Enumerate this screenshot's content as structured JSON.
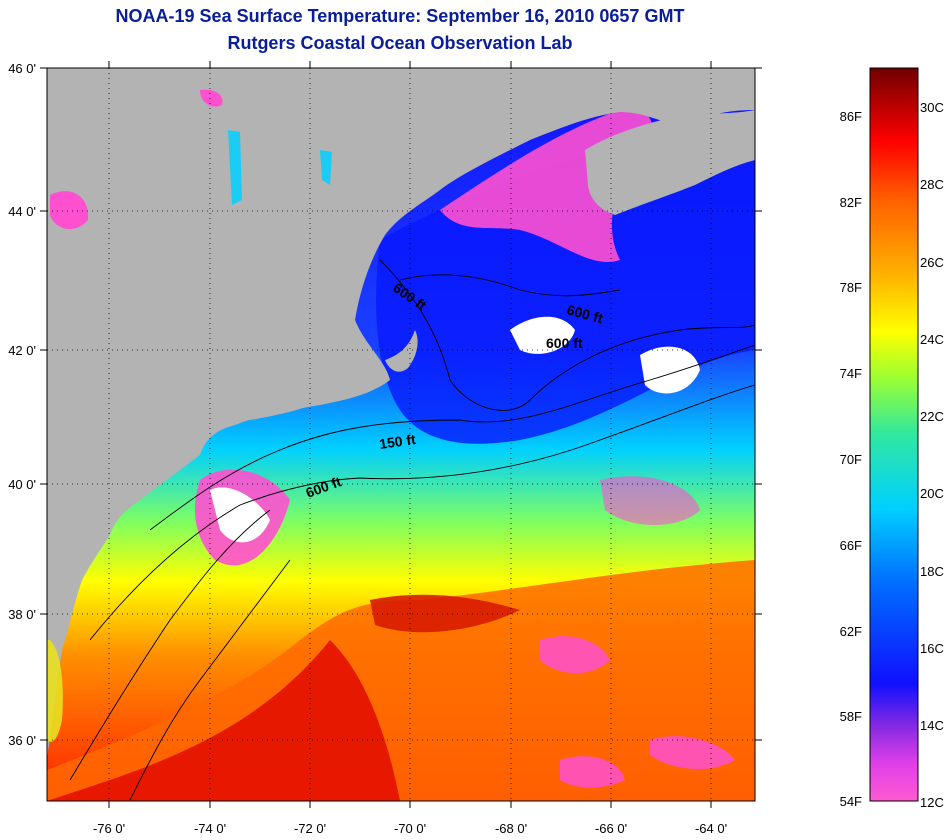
{
  "title": "NOAA-19 Sea Surface Temperature:  September 16, 2010 0657 GMT",
  "subtitle": "Rutgers Coastal Ocean Observation Lab",
  "map": {
    "lon_range": [
      -77,
      -63
    ],
    "lat_range": [
      35,
      46
    ],
    "lon_ticks": [
      "-76 0'",
      "-74 0'",
      "-72 0'",
      "-70 0'",
      "-68 0'",
      "-66 0'",
      "-64 0'"
    ],
    "lat_ticks": [
      "46 0'",
      "44 0'",
      "42 0'",
      "40 0'",
      "38 0'",
      "36 0'"
    ],
    "contour_labels": [
      "600 ft",
      "600 ft",
      "600 ft",
      "150 ft",
      "600 ft"
    ],
    "land_color": "#b3b3b3",
    "cloud_color": "#ffffff"
  },
  "colorbar": {
    "fahrenheit_labels": [
      "86F",
      "82F",
      "78F",
      "74F",
      "70F",
      "66F",
      "62F",
      "58F",
      "54F"
    ],
    "celsius_labels": [
      "30C",
      "28C",
      "26C",
      "24C",
      "22C",
      "20C",
      "18C",
      "16C",
      "14C",
      "12C"
    ],
    "min_c": 12,
    "max_c": 31,
    "colors_low_to_high": [
      "#ff5ad2",
      "#e040e8",
      "#8a2be2",
      "#1010ff",
      "#0070ff",
      "#00d0ff",
      "#30e8a0",
      "#a0ff30",
      "#ffff00",
      "#ffb000",
      "#ff6000",
      "#ff0000",
      "#700000"
    ]
  }
}
